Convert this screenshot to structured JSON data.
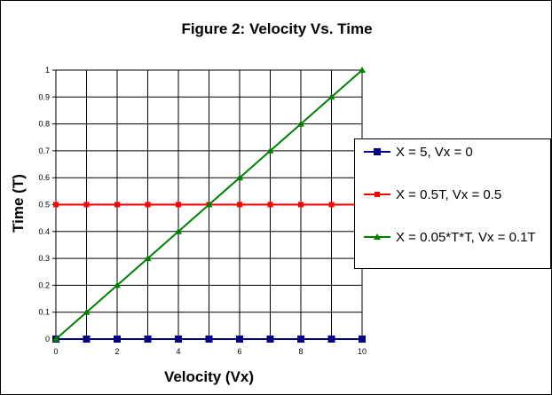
{
  "chart_data": {
    "type": "line",
    "title": "Figure 2: Velocity Vs. Time",
    "xlabel": "Velocity (Vx)",
    "ylabel": "Time (T)",
    "xlim": [
      0,
      10
    ],
    "ylim": [
      0,
      1
    ],
    "xticks": [
      "0",
      "2",
      "4",
      "6",
      "8",
      "10"
    ],
    "yticks": [
      "0",
      "0.1",
      "0.2",
      "0.3",
      "0.4",
      "0.5",
      "0.6",
      "0.7",
      "0.8",
      "0.9",
      "1"
    ],
    "grid": true,
    "legend_position": "right",
    "x": [
      0,
      1,
      2,
      3,
      4,
      5,
      6,
      7,
      8,
      9,
      10
    ],
    "series": [
      {
        "name": "X = 5, Vx = 0",
        "color": "#000080",
        "marker": "square",
        "values": [
          0,
          0,
          0,
          0,
          0,
          0,
          0,
          0,
          0,
          0,
          0
        ]
      },
      {
        "name": "X = 0.5T, Vx = 0.5",
        "color": "#ff0000",
        "marker": "square-small",
        "values": [
          0.5,
          0.5,
          0.5,
          0.5,
          0.5,
          0.5,
          0.5,
          0.5,
          0.5,
          0.5,
          0.5
        ]
      },
      {
        "name": "X = 0.05*T*T, Vx = 0.1T",
        "color": "#008000",
        "marker": "triangle",
        "values": [
          0,
          0.1,
          0.2,
          0.3,
          0.4,
          0.5,
          0.6,
          0.7,
          0.8,
          0.9,
          1
        ]
      }
    ]
  }
}
